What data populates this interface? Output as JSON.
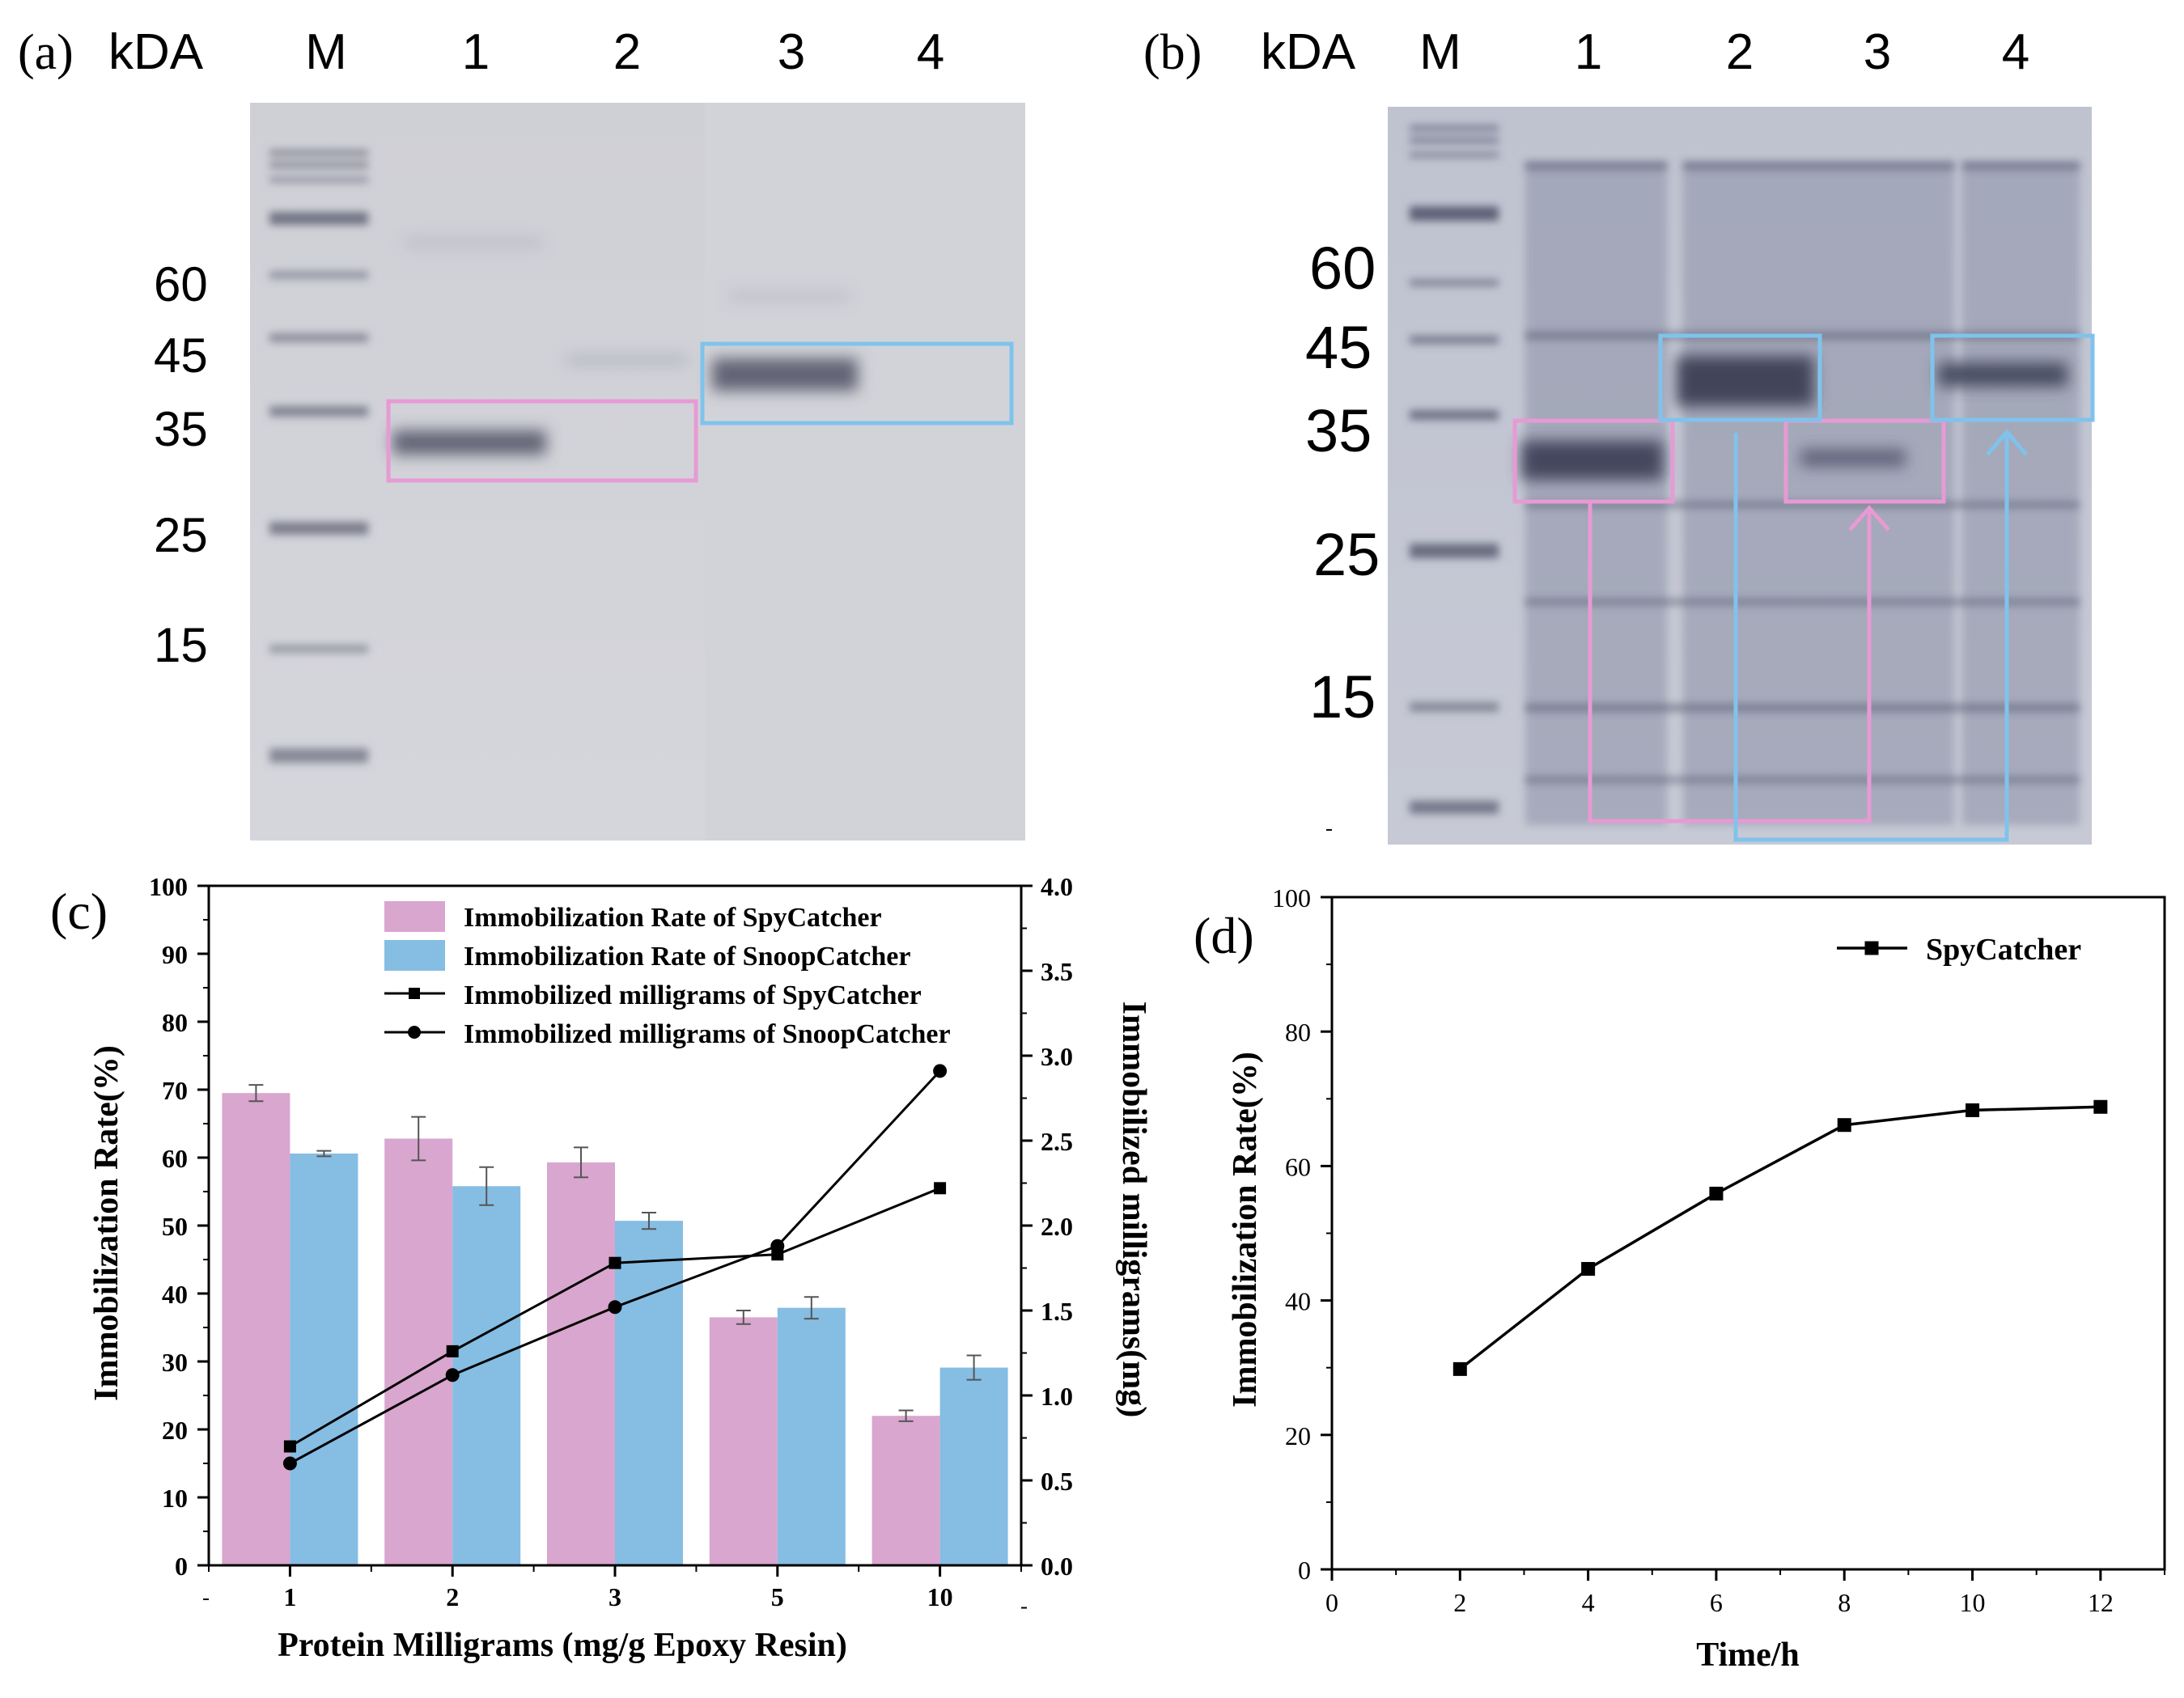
{
  "panel_a": {
    "tag": "(a)",
    "unit_label": "kDA",
    "lane_labels": [
      "M",
      "1",
      "2",
      "3",
      "4"
    ],
    "markers": [
      "60",
      "45",
      "35",
      "25",
      "15"
    ]
  },
  "panel_b": {
    "tag": "(b)",
    "unit_label": "kDA",
    "lane_labels": [
      "M",
      "1",
      "2",
      "3",
      "4"
    ],
    "markers": [
      "60",
      "45",
      "35",
      "25",
      "15"
    ]
  },
  "colors": {
    "pink": "#d9a6cf",
    "blue": "#86bde3",
    "box_pink": "#e79ad3",
    "box_blue": "#7fc3ec",
    "line": "#000000"
  },
  "chart_data": [
    {
      "panel": "(c)",
      "type": "bar",
      "categories": [
        "1",
        "2",
        "3",
        "5",
        "10"
      ],
      "xlabel": "Protein Milligrams (mg/g Epoxy Resin)",
      "ylabel": "Immobilization Rate(%)",
      "ylabel_right": "Immobilized milligrams(mg)",
      "ylim": [
        0,
        100
      ],
      "ylim_right": [
        0,
        4.0
      ],
      "yticks": [
        "0",
        "10",
        "20",
        "30",
        "40",
        "50",
        "60",
        "70",
        "80",
        "90",
        "100"
      ],
      "yticks_right": [
        "0.0",
        "0.5",
        "1.0",
        "1.5",
        "2.0",
        "2.5",
        "3.0",
        "3.5",
        "4.0"
      ],
      "bar_series": [
        {
          "name": "Immobilization Rate of SpyCatcher",
          "values": [
            69.5,
            62.8,
            59.3,
            36.5,
            22.0
          ],
          "errors": [
            1.2,
            3.2,
            2.2,
            1.0,
            0.8
          ]
        },
        {
          "name": "Immobilization Rate of SnoopCatcher",
          "values": [
            60.6,
            55.8,
            50.7,
            37.9,
            29.1
          ],
          "errors": [
            0.4,
            2.8,
            1.2,
            1.6,
            1.8
          ]
        }
      ],
      "line_series": [
        {
          "name": "Immobilized milligrams of SpyCatcher",
          "marker": "square",
          "values": [
            0.7,
            1.26,
            1.78,
            1.83,
            2.22
          ]
        },
        {
          "name": "Immobilized milligrams of SnoopCatcher",
          "marker": "circle",
          "values": [
            0.6,
            1.12,
            1.52,
            1.88,
            2.91
          ]
        }
      ]
    },
    {
      "panel": "(d)",
      "type": "line",
      "x": [
        2,
        4,
        6,
        8,
        10,
        12
      ],
      "series": [
        {
          "name": "SpyCatcher",
          "marker": "square",
          "values": [
            29.8,
            44.7,
            55.9,
            66.1,
            68.3,
            68.8
          ]
        }
      ],
      "xlabel": "Time/h",
      "ylabel": "Immobilization Rate(%)",
      "xlim": [
        0,
        13
      ],
      "ylim": [
        0,
        100
      ],
      "xticks": [
        "0",
        "2",
        "4",
        "6",
        "8",
        "10",
        "12"
      ],
      "yticks": [
        "0",
        "20",
        "40",
        "60",
        "80",
        "100"
      ]
    }
  ]
}
